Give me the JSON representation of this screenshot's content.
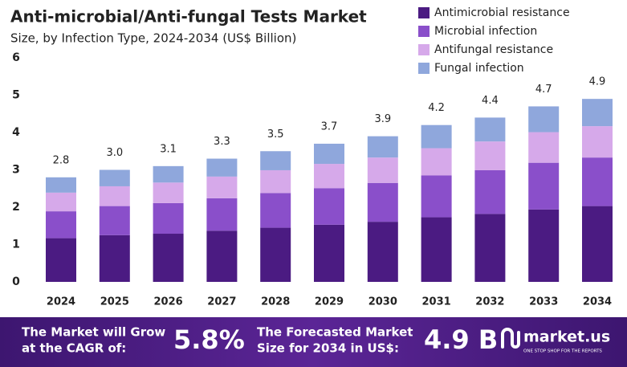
{
  "chart_data": {
    "type": "stacked_bar",
    "title": "Anti-microbial/Anti-fungal  Tests Market",
    "subtitle": "Size, by Infection Type, 2024-2034 (US$ Billion)",
    "categories": [
      "2024",
      "2025",
      "2026",
      "2027",
      "2028",
      "2029",
      "2030",
      "2031",
      "2032",
      "2033",
      "2034"
    ],
    "series": [
      {
        "name": "Antimicrobial resistance",
        "color": "#4b1b82",
        "values": [
          1.17,
          1.25,
          1.29,
          1.37,
          1.45,
          1.53,
          1.61,
          1.73,
          1.82,
          1.94,
          2.03
        ]
      },
      {
        "name": "Microbial infection",
        "color": "#8a4fca",
        "values": [
          0.72,
          0.78,
          0.82,
          0.87,
          0.93,
          0.98,
          1.04,
          1.12,
          1.17,
          1.25,
          1.3
        ]
      },
      {
        "name": "Antifungal resistance",
        "color": "#d6a9ea",
        "values": [
          0.5,
          0.53,
          0.55,
          0.58,
          0.61,
          0.65,
          0.68,
          0.73,
          0.77,
          0.82,
          0.84
        ]
      },
      {
        "name": "Fungal infection",
        "color": "#8fa7dc",
        "values": [
          0.41,
          0.44,
          0.44,
          0.48,
          0.51,
          0.54,
          0.57,
          0.62,
          0.64,
          0.69,
          0.73
        ]
      }
    ],
    "totals": {
      "values": [
        2.8,
        3,
        3.1,
        3.3,
        3.5,
        3.7,
        3.9,
        4.2,
        4.4,
        4.7,
        4.9
      ],
      "value_labels": [
        "2.8",
        "3.0",
        "3.1",
        "3.3",
        "3.5",
        "3.7",
        "3.9",
        "4.2",
        "4.4",
        "4.7",
        "4.9"
      ]
    },
    "ylim": [
      0,
      6
    ],
    "yticks": [
      0,
      1,
      2,
      3,
      4,
      5,
      6
    ],
    "grid": false,
    "legend": "top-right"
  },
  "footer": {
    "cagr_text": [
      "The Market will Grow",
      "at the CAGR of:"
    ],
    "cagr": "5.8%",
    "forecast_text": [
      "The Forecasted Market",
      "Size for 2034 in US$:"
    ],
    "forecast": "4.9 B",
    "brand": "market.us",
    "tagline": "ONE STOP SHOP FOR THE REPORTS"
  }
}
